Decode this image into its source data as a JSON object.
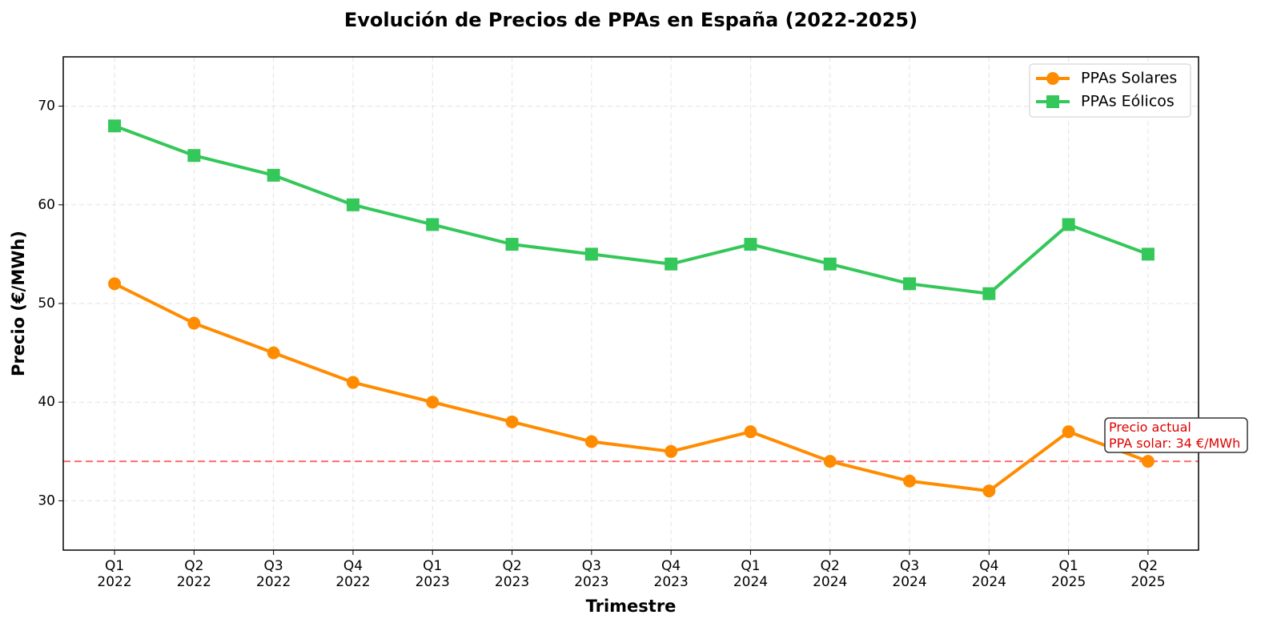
{
  "chart_data": {
    "type": "line",
    "title": "Evolución de Precios de PPAs en España (2022-2025)",
    "x_label": "Trimestre",
    "y_label": "Precio (€/MWh)",
    "categories": [
      "Q1\n2022",
      "Q2\n2022",
      "Q3\n2022",
      "Q4\n2022",
      "Q1\n2023",
      "Q2\n2023",
      "Q3\n2023",
      "Q4\n2023",
      "Q1\n2024",
      "Q2\n2024",
      "Q3\n2024",
      "Q4\n2024",
      "Q1\n2025",
      "Q2\n2025"
    ],
    "series": [
      {
        "name": "PPAs Solares",
        "color": "#ff8c00",
        "marker": "circle",
        "values": [
          52,
          48,
          45,
          42,
          40,
          38,
          36,
          35,
          37,
          34,
          32,
          31,
          37,
          34
        ]
      },
      {
        "name": "PPAs Eólicos",
        "color": "#34c759",
        "marker": "square",
        "values": [
          68,
          65,
          63,
          60,
          58,
          56,
          55,
          54,
          56,
          54,
          52,
          51,
          58,
          55
        ]
      }
    ],
    "ylim": [
      25,
      75
    ],
    "yticks": [
      30,
      40,
      50,
      60,
      70
    ],
    "grid": true,
    "legend": "upper right",
    "reference_line": {
      "value": 34,
      "color": "#ff6b6b"
    },
    "annotation": "Precio actual\nPPA solar: 34 €/MWh"
  }
}
